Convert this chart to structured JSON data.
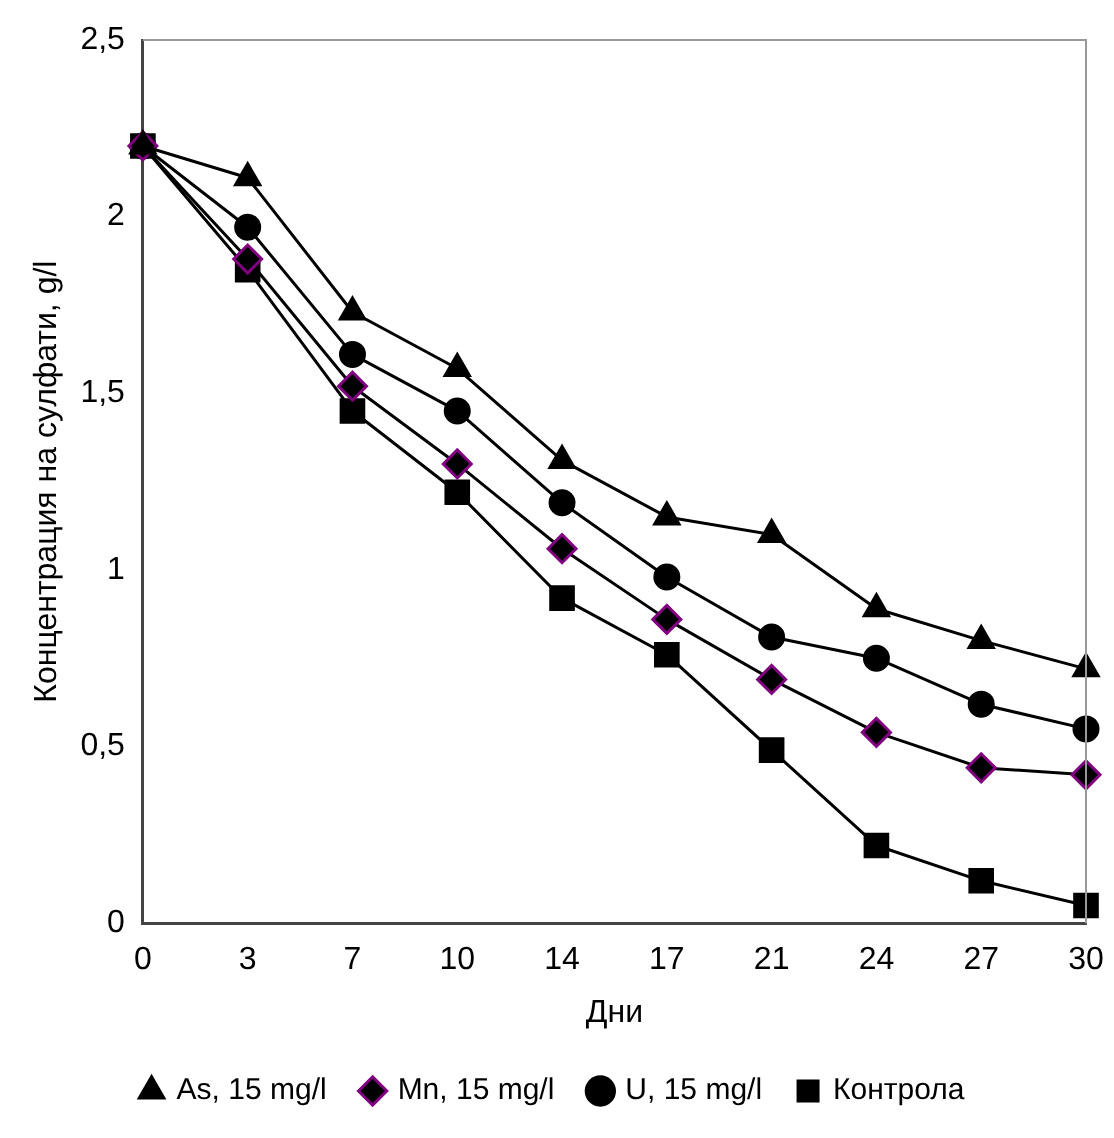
{
  "chart_data": {
    "type": "line",
    "xlabel": "Дни",
    "ylabel": "Концентрация на сулфати, g/l",
    "categories": [
      "0",
      "3",
      "7",
      "10",
      "14",
      "17",
      "21",
      "24",
      "27",
      "30"
    ],
    "series": [
      {
        "name": "As, 15 mg/l",
        "color": "#000000",
        "marker": "triangle",
        "values": [
          2.2,
          2.11,
          1.73,
          1.57,
          1.31,
          1.15,
          1.1,
          0.89,
          0.8,
          0.72
        ]
      },
      {
        "name": "Mn, 15 mg/l",
        "color": "#800080",
        "marker": "diamond",
        "values": [
          2.2,
          1.88,
          1.52,
          1.3,
          1.06,
          0.86,
          0.69,
          0.54,
          0.44,
          0.42
        ]
      },
      {
        "name": "U, 15 mg/l",
        "color": "#000000",
        "marker": "circle",
        "values": [
          2.2,
          1.97,
          1.61,
          1.45,
          1.19,
          0.98,
          0.81,
          0.75,
          0.62,
          0.55
        ]
      },
      {
        "name": "Контрола",
        "color": "#000000",
        "marker": "square",
        "values": [
          2.2,
          1.85,
          1.45,
          1.22,
          0.92,
          0.76,
          0.49,
          0.22,
          0.12,
          0.05
        ]
      }
    ],
    "ylim": [
      0,
      2.5
    ],
    "yticks": [
      0,
      {
        "value": 0.5,
        "label": "0,5"
      },
      1,
      {
        "value": 1.5,
        "label": "1,5"
      },
      2,
      {
        "value": 2.5,
        "label": "2,5"
      }
    ],
    "grid": false,
    "legend": "bottom"
  }
}
